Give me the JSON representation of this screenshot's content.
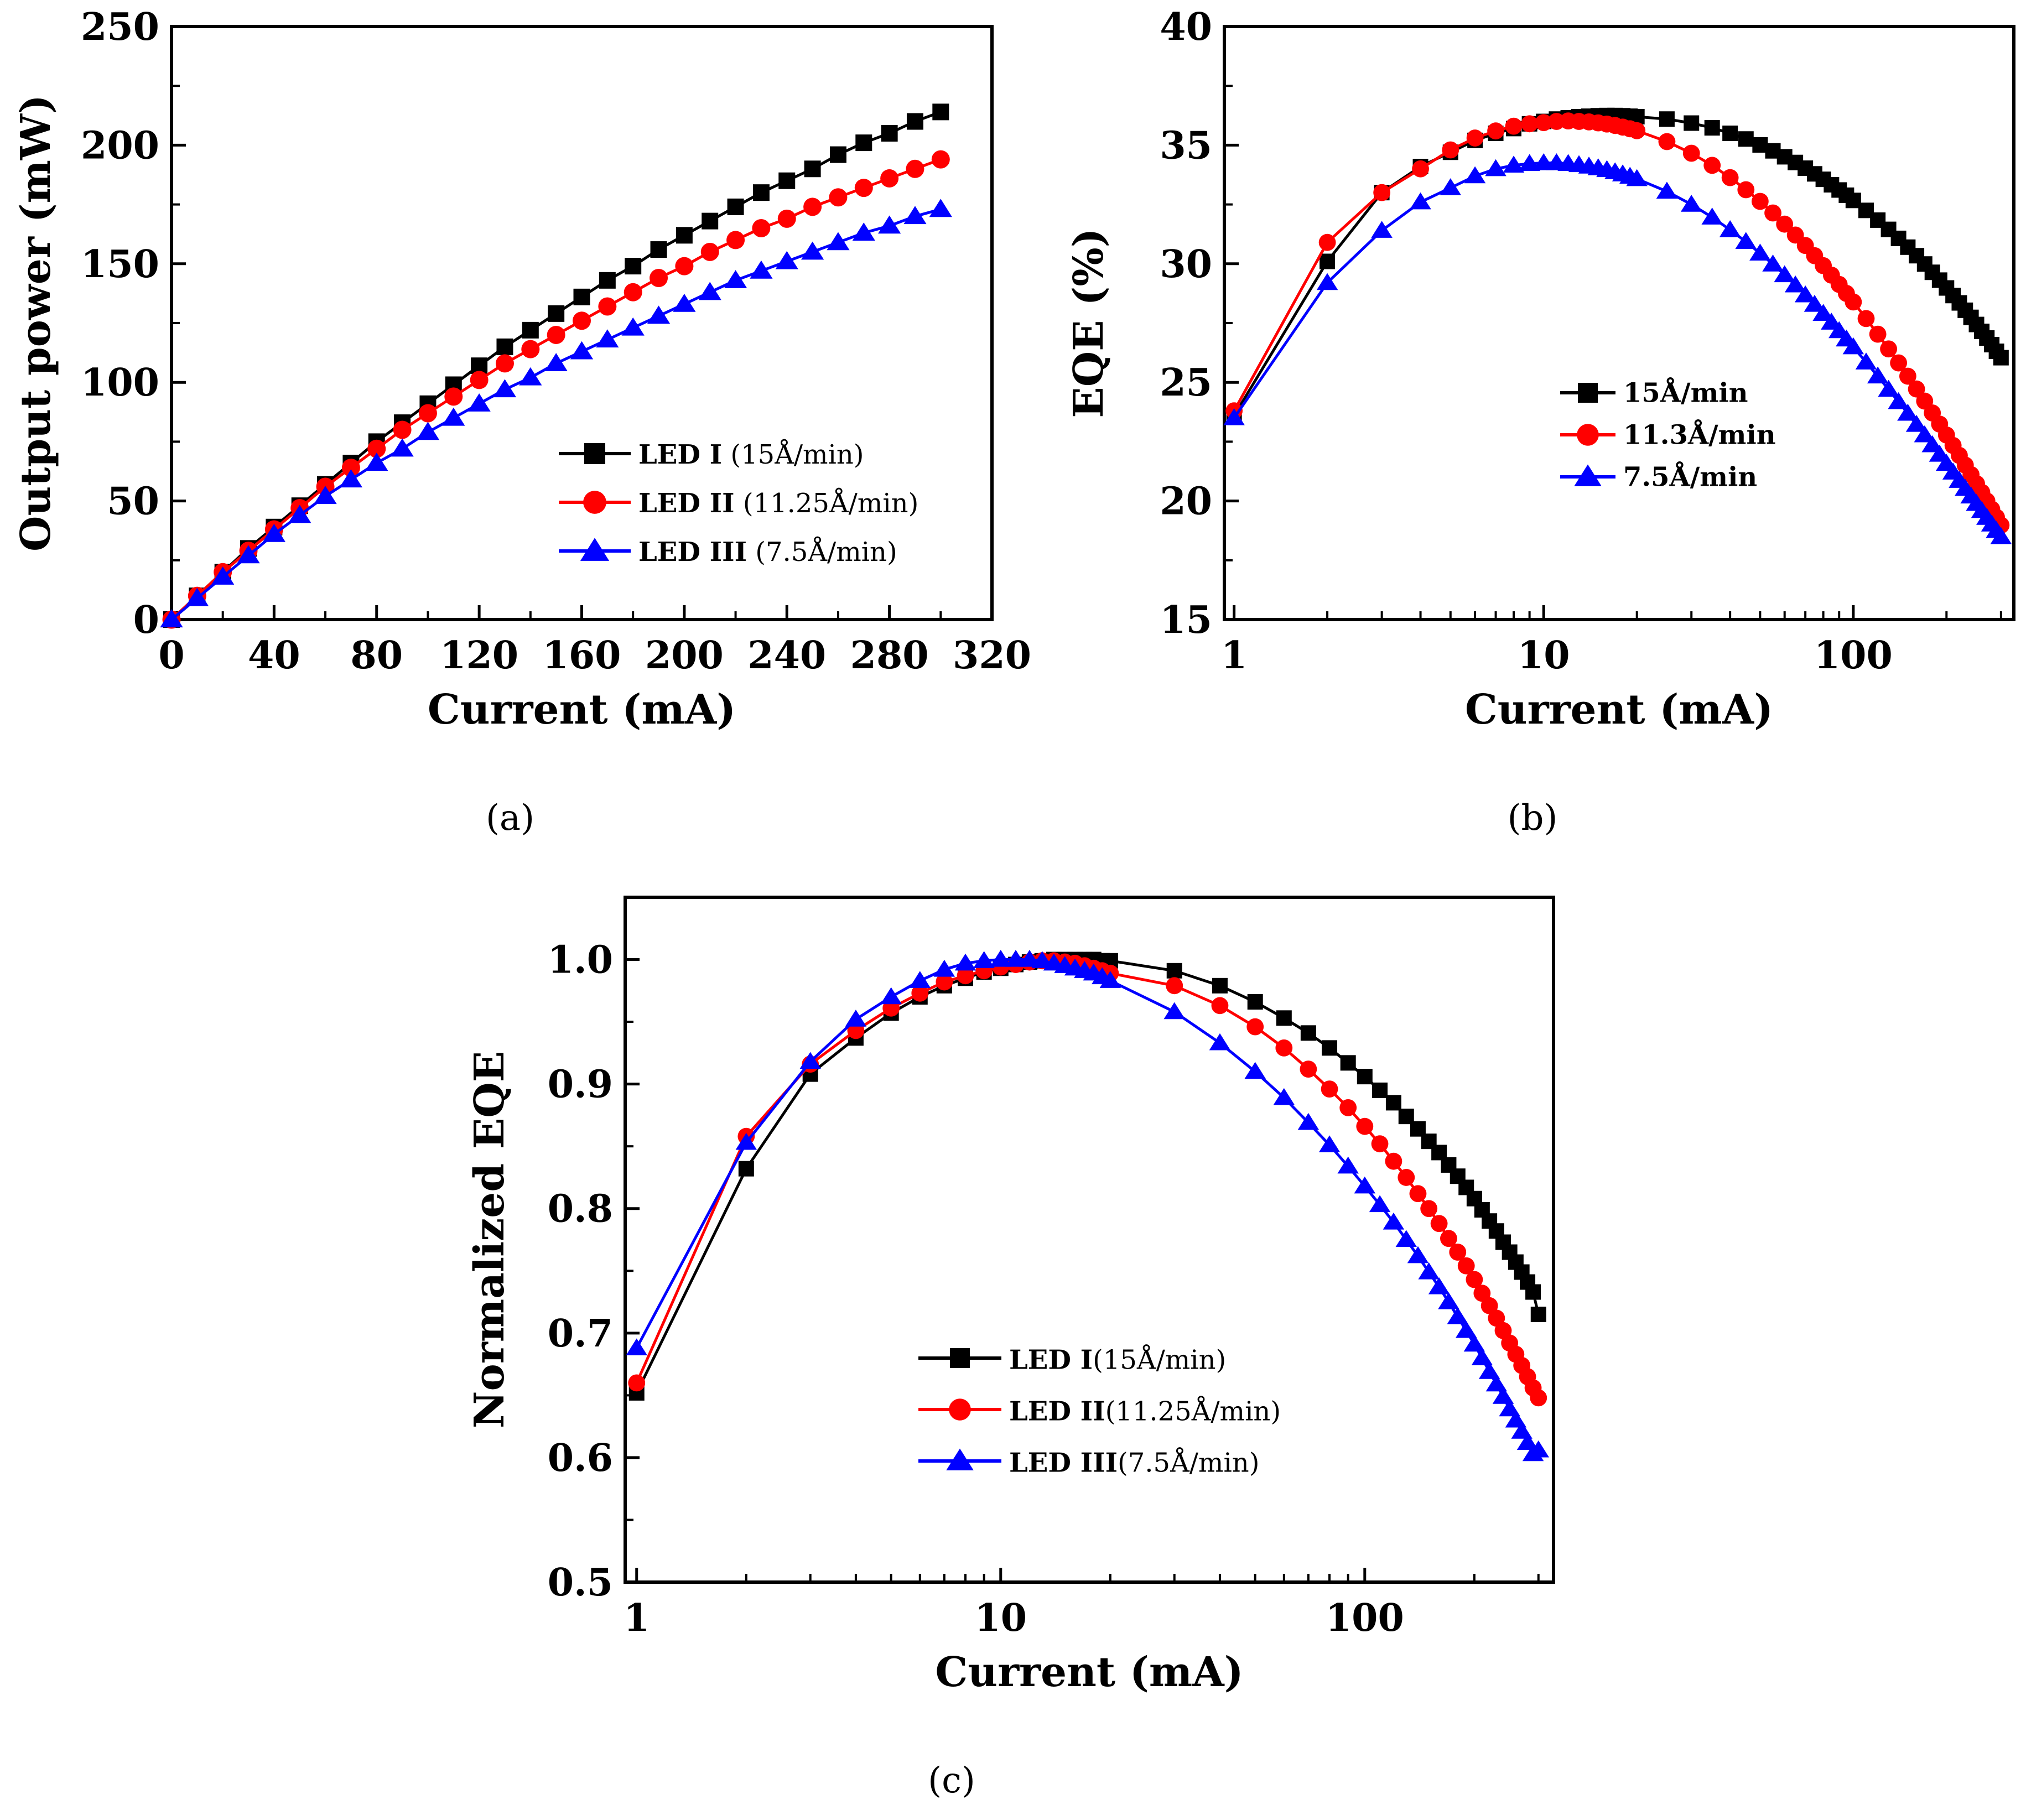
{
  "chart_data": [
    {
      "id": "a",
      "type": "line",
      "caption": "(a)",
      "xlabel": "Current (mA)",
      "ylabel": "Output power (mW)",
      "xlim": [
        0,
        320
      ],
      "ylim": [
        0,
        250
      ],
      "xscale": "linear",
      "xticks": [
        0,
        40,
        80,
        120,
        160,
        200,
        240,
        280,
        320
      ],
      "xtick_labels": [
        "0",
        "40",
        "80",
        "120",
        "160",
        "200",
        "240",
        "280",
        "320"
      ],
      "yticks": [
        0,
        50,
        100,
        150,
        200,
        250
      ],
      "ytick_labels": [
        "0",
        "50",
        "100",
        "150",
        "200",
        "250"
      ],
      "x": [
        0,
        10,
        20,
        30,
        40,
        50,
        60,
        70,
        80,
        90,
        100,
        110,
        120,
        130,
        140,
        150,
        160,
        170,
        180,
        190,
        200,
        210,
        220,
        230,
        240,
        250,
        260,
        270,
        280,
        290,
        300
      ],
      "legend_position": "lower-right",
      "series": [
        {
          "name": "LED I (15Å/min)",
          "label_main": "LED I",
          "label_paren": " (15Å/min)",
          "color": "#000000",
          "marker": "square",
          "values": [
            0,
            10,
            20,
            30,
            39,
            48,
            57,
            66,
            75,
            83,
            91,
            99,
            107,
            115,
            122,
            129,
            136,
            143,
            149,
            156,
            162,
            168,
            174,
            180,
            185,
            190,
            196,
            201,
            205,
            210,
            214
          ]
        },
        {
          "name": "LED II (11.25Å/min)",
          "label_main": "LED II",
          "label_paren": " (11.25Å/min)",
          "color": "#ff0000",
          "marker": "circle",
          "values": [
            0,
            10,
            20,
            29,
            38,
            47,
            56,
            64,
            72,
            80,
            87,
            94,
            101,
            108,
            114,
            120,
            126,
            132,
            138,
            144,
            149,
            155,
            160,
            165,
            169,
            174,
            178,
            182,
            186,
            190,
            194
          ]
        },
        {
          "name": "LED III (7.5Å/min)",
          "label_main": "LED III",
          "label_paren": " (7.5Å/min)",
          "color": "#0000ff",
          "marker": "triangle",
          "values": [
            0,
            9,
            18,
            27,
            36,
            44,
            52,
            59,
            66,
            72,
            79,
            85,
            91,
            97,
            102,
            108,
            113,
            118,
            123,
            128,
            133,
            138,
            143,
            147,
            151,
            155,
            159,
            163,
            166,
            170,
            173
          ]
        }
      ]
    },
    {
      "id": "b",
      "type": "line",
      "caption": "(b)",
      "xlabel": "Current (mA)",
      "ylabel": "EQE (%)",
      "xlim": [
        0.93,
        330
      ],
      "ylim": [
        15,
        40
      ],
      "xscale": "log",
      "xticks": [
        1,
        10,
        100
      ],
      "xtick_labels": [
        "1",
        "10",
        "100"
      ],
      "yticks": [
        15,
        20,
        25,
        30,
        35,
        40
      ],
      "ytick_labels": [
        "15",
        "20",
        "25",
        "30",
        "35",
        "40"
      ],
      "x": [
        1,
        2,
        3,
        4,
        5,
        6,
        7,
        8,
        9,
        10,
        11,
        12,
        13,
        14,
        15,
        16,
        17,
        18,
        19,
        20,
        25,
        30,
        35,
        40,
        45,
        50,
        55,
        60,
        65,
        70,
        75,
        80,
        85,
        90,
        95,
        100,
        110,
        120,
        130,
        140,
        150,
        160,
        170,
        180,
        190,
        200,
        210,
        220,
        230,
        240,
        250,
        260,
        270,
        280,
        290,
        300
      ],
      "legend_position": "lower-right",
      "series": [
        {
          "name": "15Å/min",
          "color": "#000000",
          "marker": "square",
          "values": [
            23.6,
            30.1,
            33.0,
            34.1,
            34.7,
            35.2,
            35.5,
            35.7,
            35.9,
            36.0,
            36.1,
            36.15,
            36.2,
            36.22,
            36.24,
            36.25,
            36.25,
            36.24,
            36.22,
            36.2,
            36.1,
            35.93,
            35.73,
            35.5,
            35.26,
            35.01,
            34.76,
            34.51,
            34.27,
            34.03,
            33.79,
            33.56,
            33.33,
            33.11,
            32.89,
            32.67,
            32.25,
            31.84,
            31.45,
            31.07,
            30.7,
            30.34,
            29.99,
            29.64,
            29.31,
            28.98,
            28.66,
            28.35,
            28.04,
            27.74,
            27.44,
            27.15,
            26.87,
            26.59,
            26.31,
            26.04
          ]
        },
        {
          "name": "11.3Å/min",
          "color": "#ff0000",
          "marker": "circle",
          "values": [
            23.8,
            30.9,
            33.0,
            34.0,
            34.8,
            35.3,
            35.6,
            35.8,
            35.9,
            35.95,
            36.0,
            36.02,
            36.0,
            35.98,
            35.94,
            35.89,
            35.83,
            35.76,
            35.69,
            35.61,
            35.15,
            34.66,
            34.15,
            33.63,
            33.12,
            32.63,
            32.14,
            31.67,
            31.21,
            30.77,
            30.34,
            29.92,
            29.52,
            29.13,
            28.75,
            28.39,
            27.69,
            27.03,
            26.41,
            25.82,
            25.26,
            24.72,
            24.21,
            23.71,
            23.24,
            22.78,
            22.34,
            21.92,
            21.51,
            21.11,
            20.73,
            20.36,
            20.0,
            19.65,
            19.31,
            18.98
          ]
        },
        {
          "name": "7.5Å/min",
          "color": "#0000ff",
          "marker": "triangle",
          "values": [
            23.5,
            29.2,
            31.4,
            32.6,
            33.2,
            33.7,
            34.0,
            34.15,
            34.22,
            34.25,
            34.25,
            34.22,
            34.17,
            34.11,
            34.04,
            33.96,
            33.87,
            33.78,
            33.68,
            33.58,
            33.05,
            32.5,
            31.96,
            31.43,
            30.93,
            30.44,
            29.98,
            29.53,
            29.1,
            28.68,
            28.28,
            27.9,
            27.53,
            27.17,
            26.82,
            26.49,
            25.85,
            25.26,
            24.7,
            24.18,
            23.69,
            23.22,
            22.78,
            22.36,
            21.96,
            21.58,
            21.21,
            20.86,
            20.52,
            20.2,
            19.89,
            19.59,
            19.3,
            19.02,
            18.75,
            18.49
          ]
        }
      ]
    },
    {
      "id": "c",
      "type": "line",
      "caption": "(c)",
      "xlabel": "Current (mA)",
      "ylabel": "Normalized EQE",
      "xlim": [
        0.93,
        330
      ],
      "ylim": [
        0.5,
        1.05
      ],
      "xscale": "log",
      "xticks": [
        1,
        10,
        100
      ],
      "xtick_labels": [
        "1",
        "10",
        "100"
      ],
      "yticks": [
        0.5,
        0.6,
        0.7,
        0.8,
        0.9,
        1.0
      ],
      "ytick_labels": [
        "0.5",
        "0.6",
        "0.7",
        "0.8",
        "0.9",
        "1.0"
      ],
      "x": [
        1,
        2,
        3,
        4,
        5,
        6,
        7,
        8,
        9,
        10,
        11,
        12,
        13,
        14,
        15,
        16,
        17,
        18,
        19,
        20,
        30,
        40,
        50,
        60,
        70,
        80,
        90,
        100,
        110,
        120,
        130,
        140,
        150,
        160,
        170,
        180,
        190,
        200,
        210,
        220,
        230,
        240,
        250,
        260,
        270,
        280,
        290,
        300
      ],
      "legend_position": "lower-right",
      "series": [
        {
          "name": "LED I(15Å/min)",
          "label_main": "LED I",
          "label_paren": "(15Å/min)",
          "color": "#000000",
          "marker": "square",
          "values": [
            0.652,
            0.832,
            0.908,
            0.937,
            0.957,
            0.97,
            0.979,
            0.985,
            0.99,
            0.993,
            0.996,
            0.998,
            0.999,
            1.0,
            1.0,
            1.0,
            1.0,
            1.0,
            0.999,
            0.999,
            0.991,
            0.979,
            0.966,
            0.953,
            0.941,
            0.929,
            0.917,
            0.906,
            0.895,
            0.885,
            0.874,
            0.864,
            0.854,
            0.845,
            0.835,
            0.826,
            0.817,
            0.808,
            0.799,
            0.79,
            0.782,
            0.773,
            0.765,
            0.757,
            0.749,
            0.741,
            0.733,
            0.715
          ]
        },
        {
          "name": "LED II(11.25Å/min)",
          "label_main": "LED II",
          "label_paren": "(11.25Å/min)",
          "color": "#ff0000",
          "marker": "circle",
          "values": [
            0.66,
            0.858,
            0.916,
            0.943,
            0.961,
            0.973,
            0.982,
            0.987,
            0.991,
            0.994,
            0.996,
            0.998,
            0.999,
            0.999,
            0.998,
            0.997,
            0.995,
            0.993,
            0.991,
            0.989,
            0.979,
            0.963,
            0.946,
            0.929,
            0.912,
            0.896,
            0.881,
            0.866,
            0.852,
            0.838,
            0.825,
            0.812,
            0.8,
            0.788,
            0.776,
            0.765,
            0.754,
            0.743,
            0.732,
            0.722,
            0.712,
            0.702,
            0.692,
            0.683,
            0.674,
            0.665,
            0.656,
            0.648
          ]
        },
        {
          "name": "LED III(7.5Å/min)",
          "label_main": "LED III",
          "label_paren": "(7.5Å/min)",
          "color": "#0000ff",
          "marker": "triangle",
          "values": [
            0.688,
            0.853,
            0.918,
            0.952,
            0.97,
            0.983,
            0.992,
            0.997,
            0.999,
            1.0,
            1.0,
            1.0,
            0.999,
            0.997,
            0.995,
            0.993,
            0.991,
            0.989,
            0.986,
            0.983,
            0.958,
            0.933,
            0.91,
            0.889,
            0.869,
            0.851,
            0.834,
            0.818,
            0.803,
            0.789,
            0.775,
            0.762,
            0.749,
            0.737,
            0.725,
            0.713,
            0.702,
            0.691,
            0.68,
            0.669,
            0.659,
            0.649,
            0.639,
            0.63,
            0.621,
            0.612,
            0.603,
            0.606
          ]
        }
      ]
    }
  ]
}
